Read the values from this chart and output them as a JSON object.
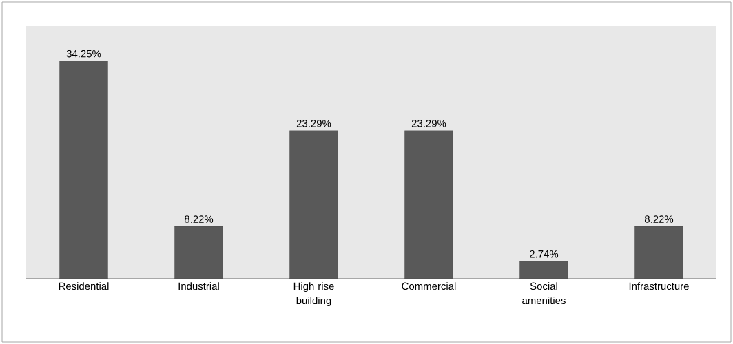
{
  "chart_data": {
    "type": "bar",
    "categories": [
      "Residential",
      "Industrial",
      "High rise building",
      "Commercial",
      "Social amenities",
      "Infrastructure"
    ],
    "values": [
      34.25,
      8.22,
      23.29,
      23.29,
      2.74,
      8.22
    ],
    "value_labels": [
      "34.25%",
      "8.22%",
      "23.29%",
      "23.29%",
      "2.74%",
      "8.22%"
    ],
    "color": "#595959"
  }
}
